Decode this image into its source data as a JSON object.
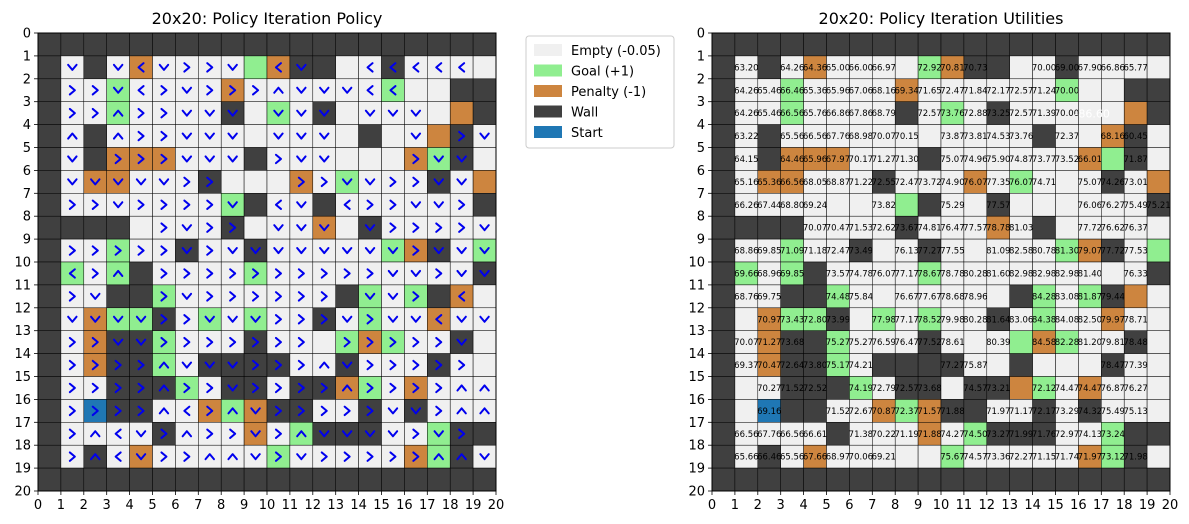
{
  "chart_data": [
    {
      "type": "heatmap",
      "title": "20x20: Policy Iteration Policy",
      "xlim": [
        0,
        20
      ],
      "ylim": [
        20,
        0
      ],
      "xticks": [
        "0",
        "1",
        "2",
        "3",
        "4",
        "5",
        "6",
        "7",
        "8",
        "9",
        "10",
        "11",
        "12",
        "13",
        "14",
        "15",
        "16",
        "17",
        "18",
        "19",
        "20"
      ],
      "yticks": [
        "0",
        "1",
        "2",
        "3",
        "4",
        "5",
        "6",
        "7",
        "8",
        "9",
        "10",
        "11",
        "12",
        "13",
        "14",
        "15",
        "16",
        "17",
        "18",
        "19",
        "20"
      ],
      "legend": {
        "placement": "outside-right",
        "entries": [
          {
            "label": "Empty (-0.05)",
            "color": "#f0f0f0"
          },
          {
            "label": "Goal (+1)",
            "color": "#90ee90"
          },
          {
            "label": "Penalty (-1)",
            "color": "#cd853f"
          },
          {
            "label": "Wall",
            "color": "#404040"
          },
          {
            "label": "Start",
            "color": "#1f77b4"
          }
        ]
      },
      "grid": [
        "WWWWWWWWWWWWWWWWWWWW",
        "W.W.P....GPWW..W....",
        "W..G....P......G..WW",
        "W..G....W.G.W.....PW",
        "W.W...........W..PW.",
        "W.WPPP...W......PGW.",
        "W.PP...W...P.G...W.P",
        "W.......GW..W......W",
        "WWWW....W...P.W.....",
        "W..G..W..W.....GPW.G",
        "WG.GW....G.........W",
        "W..WWG.......WG.GWP.",
        "W.PGGW.G.G..W.G..P..",
        "W.PWWG...W...GPG..W.",
        "W.PWWG.WWWW..W...W..",
        "W..WWWG.WW.WWPG.P...",
        "W.SWW..PGPWW..W.W...",
        "W....W...P.GWWW..GWW",
        "W.W.P.....G.....PGW.",
        "WWWWWWWWWWWWWWWWWWWW"
      ],
      "policy": [
        "....................",
        ".v.v<v>>v.<v..<<<<<.",
        ".>>v<>v>>>^vvv<<....",
        ".>>^>>vvv.vvv.vvv...",
        ".^.^>>vvv.vvv...v.>v",
        ".v.>>>vvv.>vv...>vv.",
        ".vvvvv>>...>>vv>>vv.",
        ".>>v>>>>v.<v.<>>vv>.",
        ".....>v>>.vvv.v>>>>v",
        ".>>>>>v>vvvvvvvv>vvv",
        ".<>^.>>>>>>>>>>vv>vv",
        ".>v..>v>>>>>>.vv>.<.",
        ".vvvv>>vvv>>>v>vv<vv",
        ".>>vv>>>>>>>.>>>>>v.",
        ".>>>>^vvv>>>^v>>>>>.",
        ".>>>>^>>v>>>>^>>>>^^",
        ".>>>>^<>^v>>>>>vv>^^",
        ".>^<v>^>>v>^vvvv>v>.",
        ".>^<v>>^^v>v>>>>>^^v",
        "...................."
      ]
    },
    {
      "type": "heatmap",
      "title": "20x20: Policy Iteration Utilities",
      "xlim": [
        0,
        20
      ],
      "ylim": [
        20,
        0
      ],
      "xticks": [
        "0",
        "1",
        "2",
        "3",
        "4",
        "5",
        "6",
        "7",
        "8",
        "9",
        "10",
        "11",
        "12",
        "13",
        "14",
        "15",
        "16",
        "17",
        "18",
        "19",
        "20"
      ],
      "yticks": [
        "0",
        "1",
        "2",
        "3",
        "4",
        "5",
        "6",
        "7",
        "8",
        "9",
        "10",
        "11",
        "12",
        "13",
        "14",
        "15",
        "16",
        "17",
        "18",
        "19",
        "20"
      ],
      "highlight_label": "-86.60",
      "values": [
        [],
        [
          1,
          63.2,
          2,
          null,
          3,
          64.26,
          4,
          64.36,
          5,
          65.0,
          6,
          66.0,
          7,
          66.97,
          9,
          72.92,
          10,
          70.81,
          11,
          70.73,
          14,
          70.0,
          15,
          69.0,
          16,
          67.9,
          17,
          66.86,
          18,
          65.77
        ],
        [
          1,
          64.26,
          2,
          65.46,
          3,
          66.46,
          4,
          65.36,
          5,
          65.96,
          6,
          67.06,
          7,
          68.16,
          8,
          69.34,
          9,
          71.65,
          10,
          72.47,
          11,
          71.84,
          12,
          72.17,
          13,
          72.57,
          14,
          71.24,
          15,
          70.0
        ],
        [
          1,
          64.26,
          2,
          65.46,
          3,
          66.56,
          4,
          65.76,
          5,
          66.86,
          6,
          67.86,
          7,
          68.79,
          9,
          72.57,
          10,
          73.76,
          11,
          72.88,
          12,
          73.25,
          13,
          72.57,
          14,
          71.39,
          15,
          70.0
        ],
        [
          1,
          63.22,
          3,
          65.56,
          4,
          66.56,
          5,
          67.76,
          6,
          68.98,
          7,
          70.07,
          8,
          70.15,
          10,
          73.87,
          11,
          73.81,
          12,
          74.53,
          13,
          73.76,
          15,
          72.37,
          17,
          68.16,
          18,
          60.45
        ],
        [
          1,
          64.15,
          3,
          64.46,
          4,
          65.96,
          5,
          67.97,
          6,
          70.17,
          7,
          71.27,
          8,
          71.3,
          10,
          75.07,
          11,
          74.96,
          12,
          75.9,
          13,
          74.87,
          14,
          73.77,
          15,
          73.52,
          16,
          66.01,
          18,
          71.87
        ],
        [
          1,
          65.16,
          2,
          65.36,
          3,
          66.56,
          4,
          68.05,
          5,
          68.87,
          6,
          71.22,
          7,
          72.55,
          8,
          72.47,
          9,
          73.72,
          10,
          74.9,
          11,
          76.07,
          12,
          77.35,
          13,
          76.07,
          14,
          74.71,
          16,
          75.07,
          17,
          74.26,
          18,
          73.01
        ],
        [
          1,
          66.26,
          2,
          67.44,
          3,
          68.8,
          4,
          69.24,
          7,
          73.82,
          10,
          75.29,
          12,
          77.57,
          16,
          76.06,
          17,
          76.27,
          18,
          75.49,
          19,
          75.21
        ],
        [
          4,
          70.07,
          5,
          70.47,
          6,
          71.53,
          7,
          72.62,
          8,
          73.67,
          9,
          74.81,
          10,
          76.47,
          11,
          77.57,
          12,
          78.78,
          13,
          81.03,
          16,
          77.72,
          17,
          76.62,
          18,
          76.37
        ],
        [
          1,
          68.86,
          2,
          69.85,
          3,
          71.09,
          4,
          71.18,
          5,
          72.47,
          6,
          73.49,
          8,
          76.13,
          9,
          77.27,
          10,
          77.55,
          12,
          81.09,
          13,
          82.58,
          14,
          80.78,
          15,
          81.3,
          16,
          79.07,
          17,
          77.72,
          18,
          77.53
        ],
        [
          1,
          69.66,
          2,
          68.96,
          3,
          69.85,
          5,
          73.57,
          6,
          74.78,
          7,
          76.07,
          8,
          77.17,
          9,
          78.67,
          10,
          78.78,
          11,
          80.28,
          12,
          81.6,
          13,
          82.98,
          14,
          82.98,
          15,
          82.98,
          16,
          81.4,
          18,
          76.33
        ],
        [
          1,
          68.76,
          2,
          69.75,
          5,
          74.48,
          6,
          75.84,
          8,
          76.67,
          9,
          77.67,
          10,
          78.68,
          11,
          78.96,
          14,
          84.28,
          15,
          83.08,
          16,
          81.87,
          17,
          79.44
        ],
        [
          2,
          70.97,
          3,
          73.43,
          4,
          72.8,
          5,
          73.99,
          7,
          77.98,
          8,
          77.17,
          9,
          78.52,
          10,
          79.98,
          11,
          80.28,
          12,
          81.64,
          13,
          83.06,
          14,
          84.38,
          15,
          84.08,
          16,
          82.5,
          17,
          79.97,
          18,
          78.71
        ],
        [
          1,
          70.07,
          2,
          71.27,
          3,
          73.68,
          5,
          75.27,
          6,
          75.27,
          7,
          76.59,
          8,
          76.47,
          9,
          77.52,
          10,
          78.61,
          12,
          80.39,
          14,
          84.58,
          15,
          82.28,
          16,
          81.2,
          17,
          79.81,
          18,
          78.48
        ],
        [
          1,
          69.37,
          2,
          70.47,
          3,
          72.64,
          4,
          73.8,
          5,
          75.17,
          6,
          74.21,
          10,
          77.27,
          11,
          75.87,
          17,
          78.47,
          18,
          77.39
        ],
        [
          2,
          70.27,
          3,
          71.52,
          4,
          72.52,
          6,
          74.19,
          7,
          72.79,
          8,
          72.57,
          9,
          73.68,
          11,
          74.57,
          12,
          73.21,
          14,
          72.12,
          15,
          74.47,
          16,
          74.47,
          17,
          76.87,
          18,
          76.27
        ],
        [
          2,
          69.16,
          5,
          71.52,
          6,
          72.67,
          7,
          70.87,
          8,
          72.37,
          9,
          71.57,
          10,
          71.88,
          12,
          71.97,
          13,
          71.17,
          14,
          72.17,
          15,
          73.29,
          16,
          74.32,
          17,
          75.49,
          18,
          75.13
        ],
        [
          1,
          66.56,
          2,
          67.76,
          3,
          66.56,
          4,
          66.61,
          6,
          71.38,
          7,
          70.22,
          8,
          71.19,
          9,
          71.88,
          10,
          74.27,
          11,
          74.5,
          12,
          73.27,
          13,
          71.99,
          14,
          71.76,
          15,
          72.97,
          16,
          74.13,
          17,
          73.24
        ],
        [
          1,
          65.66,
          2,
          66.46,
          3,
          65.56,
          4,
          67.66,
          5,
          68.97,
          6,
          70.06,
          7,
          69.21,
          10,
          75.67,
          11,
          74.57,
          12,
          73.36,
          13,
          72.27,
          14,
          71.15,
          15,
          71.74,
          16,
          71.97,
          17,
          73.12,
          18,
          71.98
        ],
        []
      ]
    }
  ]
}
